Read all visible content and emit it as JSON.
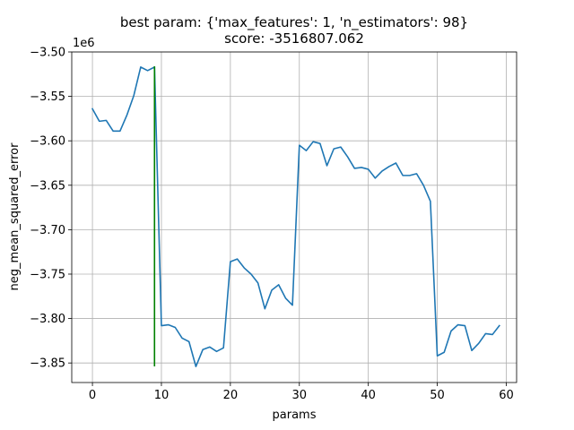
{
  "chart_data": {
    "type": "line",
    "title_line1": "best param: {'max_features': 1, 'n_estimators': 98}",
    "title_line2": "score: -3516807.062",
    "xlabel": "params",
    "ylabel": "neg_mean_squared_error",
    "y_offset_label": "1e6",
    "xlim": [
      -3,
      61.5
    ],
    "ylim": [
      -3.872,
      -3.5
    ],
    "x_ticks": [
      0,
      10,
      20,
      30,
      40,
      50,
      60
    ],
    "x_tick_labels": [
      "0",
      "10",
      "20",
      "30",
      "40",
      "50",
      "60"
    ],
    "y_ticks": [
      -3.85,
      -3.8,
      -3.75,
      -3.7,
      -3.65,
      -3.6,
      -3.55,
      -3.5
    ],
    "y_tick_labels": [
      "−3.85",
      "−3.80",
      "−3.75",
      "−3.70",
      "−3.65",
      "−3.60",
      "−3.55",
      "−3.50"
    ],
    "grid": true,
    "series": [
      {
        "color": "#1f77b4",
        "x": [
          0,
          1,
          2,
          3,
          4,
          5,
          6,
          7,
          8,
          9,
          10,
          11,
          12,
          13,
          14,
          15,
          16,
          17,
          18,
          19,
          20,
          21,
          22,
          23,
          24,
          25,
          26,
          27,
          28,
          29,
          30,
          31,
          32,
          33,
          34,
          35,
          36,
          37,
          38,
          39,
          40,
          41,
          42,
          43,
          44,
          45,
          46,
          47,
          48,
          49,
          50,
          51,
          52,
          53,
          54,
          55,
          56,
          57,
          58,
          59
        ],
        "y": [
          -3.564,
          -3.578,
          -3.577,
          -3.589,
          -3.589,
          -3.571,
          -3.549,
          -3.517,
          -3.521,
          -3.517,
          -3.808,
          -3.807,
          -3.81,
          -3.822,
          -3.826,
          -3.854,
          -3.835,
          -3.832,
          -3.837,
          -3.833,
          -3.736,
          -3.733,
          -3.743,
          -3.75,
          -3.76,
          -3.789,
          -3.768,
          -3.762,
          -3.777,
          -3.785,
          -3.605,
          -3.611,
          -3.601,
          -3.603,
          -3.628,
          -3.609,
          -3.607,
          -3.618,
          -3.631,
          -3.63,
          -3.632,
          -3.642,
          -3.634,
          -3.629,
          -3.625,
          -3.639,
          -3.639,
          -3.637,
          -3.65,
          -3.668,
          -3.842,
          -3.838,
          -3.814,
          -3.807,
          -3.808,
          -3.836,
          -3.828,
          -3.817,
          -3.818,
          -3.808
        ]
      },
      {
        "color": "#008000",
        "x": [
          9,
          9
        ],
        "y": [
          -3.853,
          -3.517
        ]
      }
    ]
  }
}
